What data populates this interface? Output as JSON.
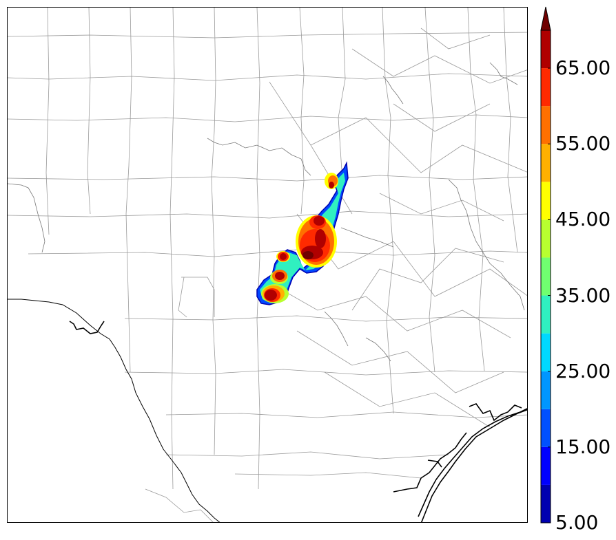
{
  "colorbar": {
    "levels": [
      5,
      10,
      15,
      20,
      25,
      30,
      35,
      40,
      45,
      50,
      55,
      60,
      65,
      70
    ],
    "colors": [
      "#0000b0",
      "#0000ff",
      "#0050ff",
      "#0096ff",
      "#00d8ff",
      "#30f0c0",
      "#70ff70",
      "#b8ff30",
      "#ffff00",
      "#ffb000",
      "#ff7000",
      "#ff2a00",
      "#b00000",
      "#700000"
    ],
    "tick_labels": [
      "5.00",
      "15.00",
      "25.00",
      "35.00",
      "45.00",
      "55.00",
      "65.00"
    ],
    "tick_values": [
      5,
      15,
      25,
      35,
      45,
      55,
      65
    ],
    "extend": "max"
  },
  "map": {
    "boundary_color": "#999999",
    "coastline_color": "#000000",
    "echo_feature": "storm line oriented northeast-southwest across central region"
  }
}
